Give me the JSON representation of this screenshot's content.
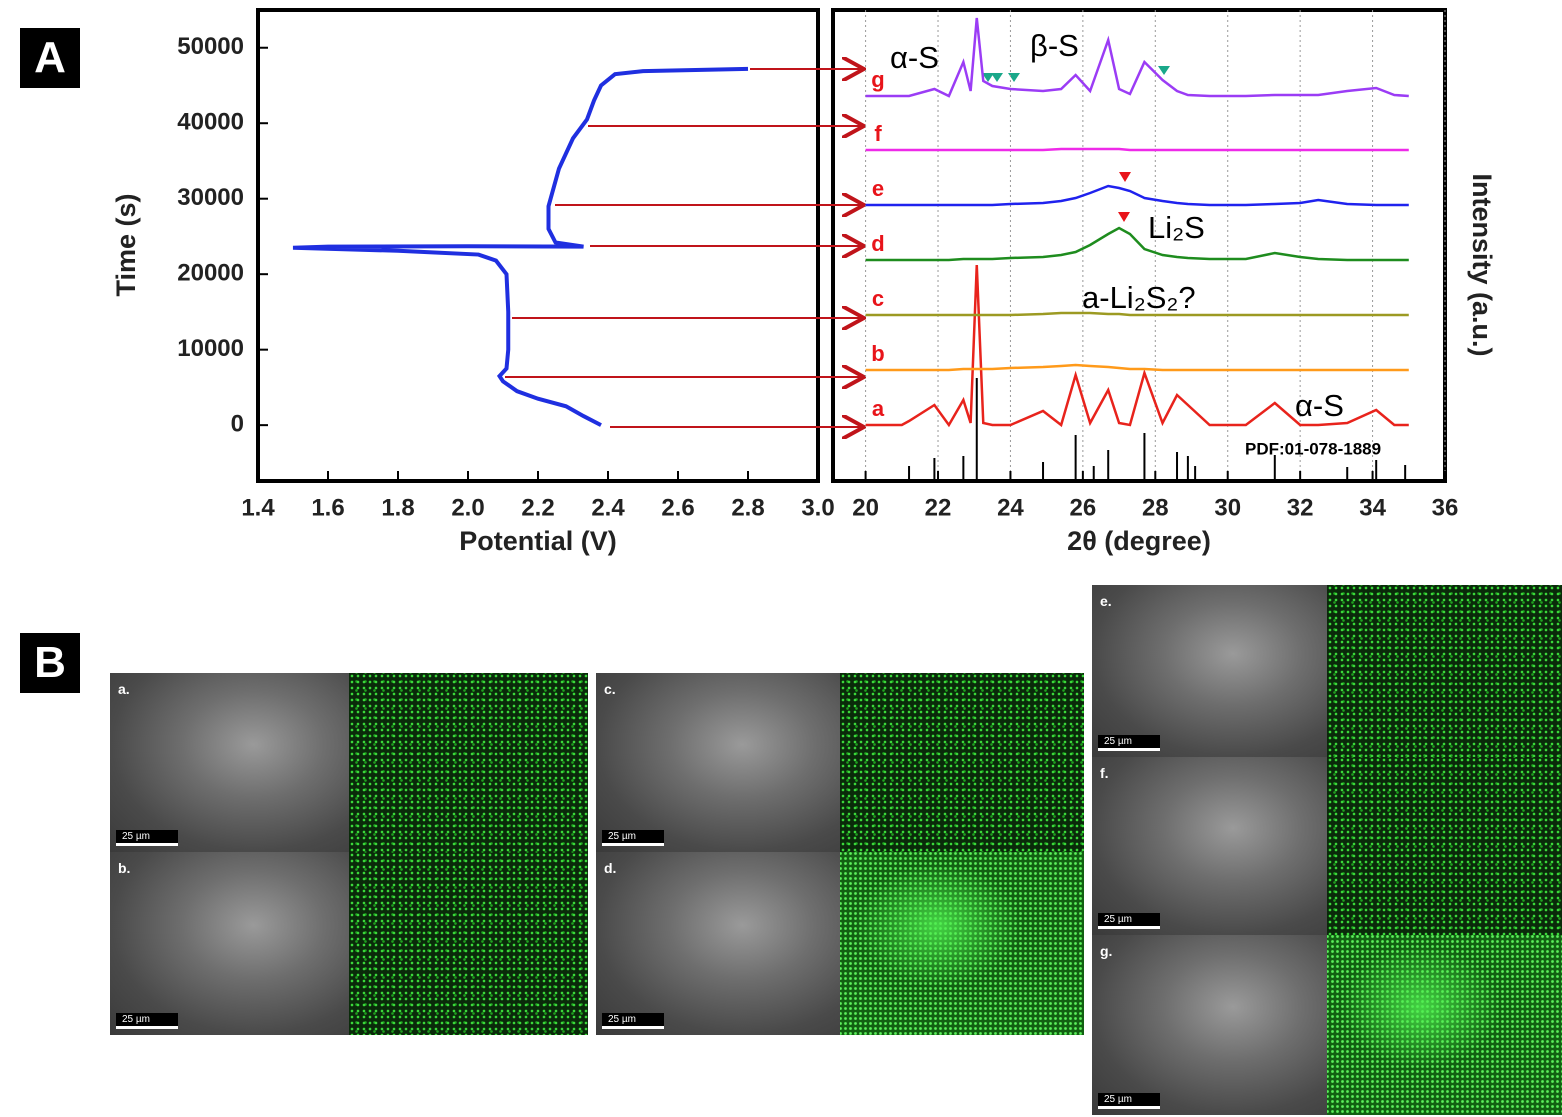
{
  "panel_a_label": "A",
  "panel_b_label": "B",
  "chart_data": [
    {
      "type": "line",
      "xlabel": "Potential (V)",
      "ylabel": "Time (s)",
      "color": "#1f2fe0",
      "x": [
        2.38,
        2.33,
        2.28,
        2.2,
        2.14,
        2.1,
        2.09,
        2.11,
        2.115,
        2.115,
        2.11,
        2.08,
        2.03,
        1.8,
        1.5,
        1.6,
        2.0,
        2.33,
        2.25,
        2.23,
        2.23,
        2.26,
        2.3,
        2.34,
        2.36,
        2.38,
        2.42,
        2.5,
        2.7,
        2.8
      ],
      "values": [
        0,
        1200,
        2500,
        3500,
        4500,
        5800,
        6500,
        7500,
        10000,
        15000,
        20000,
        21800,
        22600,
        23100,
        23500,
        23650,
        23700,
        23650,
        24200,
        26000,
        29000,
        34000,
        38000,
        40500,
        43000,
        45000,
        46500,
        46900,
        47100,
        47200
      ],
      "xlim": [
        1.4,
        3.0
      ],
      "xticks": [
        1.4,
        1.6,
        1.8,
        {
          "value": 2,
          "label": "2.0"
        },
        2.2,
        2.4,
        2.6,
        2.8,
        {
          "value": 3,
          "label": "3.0"
        }
      ],
      "ylim": [
        -7400,
        55000
      ],
      "yticks": [
        0,
        10000,
        20000,
        30000,
        40000,
        50000
      ]
    },
    {
      "type": "line",
      "xlabel": "2θ (degree)",
      "ylabel": "Intensity (a.u.)",
      "grid": true,
      "x": [
        20,
        21,
        21.2,
        21.9,
        22.3,
        22.7,
        22.9,
        23.07,
        23.25,
        23.5,
        24,
        24.9,
        25.4,
        25.8,
        26.2,
        26.7,
        27.0,
        27.3,
        27.7,
        28.2,
        28.6,
        28.9,
        29.5,
        30.5,
        31.3,
        32,
        32.5,
        33.3,
        34.1,
        34.6,
        35
      ],
      "series": [
        {
          "name": "a",
          "color": "#e8231c",
          "values": [
            56,
            56,
            60,
            76,
            56,
            81,
            58,
            216,
            58,
            56,
            56,
            70,
            56,
            106,
            58,
            91,
            58,
            56,
            108,
            58,
            86,
            76,
            56,
            56,
            78,
            56,
            56,
            58,
            71,
            56,
            56
          ]
        },
        {
          "name": "b",
          "color": "#ff9a1a",
          "values": [
            111,
            111,
            111,
            111,
            111,
            112,
            112,
            112,
            112,
            112,
            113,
            114,
            115,
            116,
            115,
            114,
            113,
            112,
            112,
            111,
            111,
            111,
            111,
            111,
            111,
            111,
            111,
            111,
            111,
            111,
            111
          ]
        },
        {
          "name": "c",
          "color": "#9c9a22",
          "values": [
            166,
            166,
            166,
            166,
            166,
            166,
            166,
            166,
            166,
            166,
            166,
            167,
            168,
            168,
            168,
            167,
            167,
            166,
            166,
            166,
            166,
            166,
            166,
            166,
            166,
            166,
            166,
            166,
            166,
            166,
            166
          ]
        },
        {
          "name": "d",
          "color": "#1e8c1e",
          "values": [
            221,
            221,
            221,
            221,
            221,
            222,
            222,
            222,
            222,
            222,
            223,
            224,
            226,
            229,
            236,
            247,
            253,
            247,
            232,
            226,
            224,
            223,
            222,
            222,
            228,
            224,
            222,
            221,
            221,
            221,
            221
          ]
        },
        {
          "name": "e",
          "color": "#1f22ee",
          "values": [
            276,
            276,
            276,
            276,
            276,
            276,
            276,
            276,
            276,
            276,
            277,
            278,
            280,
            283,
            288,
            295,
            293,
            290,
            283,
            280,
            278,
            277,
            276,
            276,
            277,
            278,
            281,
            277,
            276,
            276,
            276
          ]
        },
        {
          "name": "f",
          "color": "#ee2ae8",
          "values": [
            331,
            331,
            331,
            331,
            331,
            331,
            331,
            331,
            331,
            331,
            331,
            331,
            332,
            332,
            332,
            332,
            332,
            331,
            331,
            331,
            331,
            331,
            331,
            331,
            331,
            331,
            331,
            331,
            331,
            331,
            331
          ]
        },
        {
          "name": "g",
          "color": "#9b3cf5",
          "values": [
            385,
            385,
            385,
            392,
            385,
            419,
            390,
            463,
            400,
            395,
            392,
            390,
            392,
            406,
            390,
            441,
            392,
            387,
            419,
            401,
            390,
            386,
            385,
            385,
            386,
            386,
            386,
            390,
            393,
            386,
            385
          ]
        }
      ],
      "reference": {
        "label": "PDF:01-078-1889",
        "color": "#000000",
        "x": [
          21.2,
          21.9,
          22.7,
          23.07,
          24.9,
          25.8,
          26.3,
          26.7,
          27.7,
          28.6,
          28.9,
          29.1,
          31.3,
          33.3,
          34.1,
          34.9
        ],
        "values": [
          15,
          23,
          25,
          103,
          19,
          46,
          15,
          31,
          48,
          29,
          25,
          15,
          26,
          14,
          21,
          16
        ]
      },
      "annotations": [
        "α-S",
        "β-S",
        "Li₂S",
        "a-Li₂S₂?",
        "α-S"
      ],
      "xlim": [
        19.1,
        36
      ],
      "xticks": [
        20,
        22,
        24,
        26,
        28,
        30,
        32,
        34,
        36
      ],
      "ylim": [
        0,
        471
      ]
    }
  ],
  "panel_b": {
    "images": [
      {
        "label": "a.",
        "scale": "25 µm"
      },
      {
        "label": "b.",
        "scale": "25 µm"
      },
      {
        "label": "c.",
        "scale": "25 µm"
      },
      {
        "label": "d.",
        "scale": "25 µm"
      },
      {
        "label": "e.",
        "scale": "25 µm"
      },
      {
        "label": "f.",
        "scale": "25 µm"
      },
      {
        "label": "g.",
        "scale": "25 µm"
      }
    ]
  }
}
